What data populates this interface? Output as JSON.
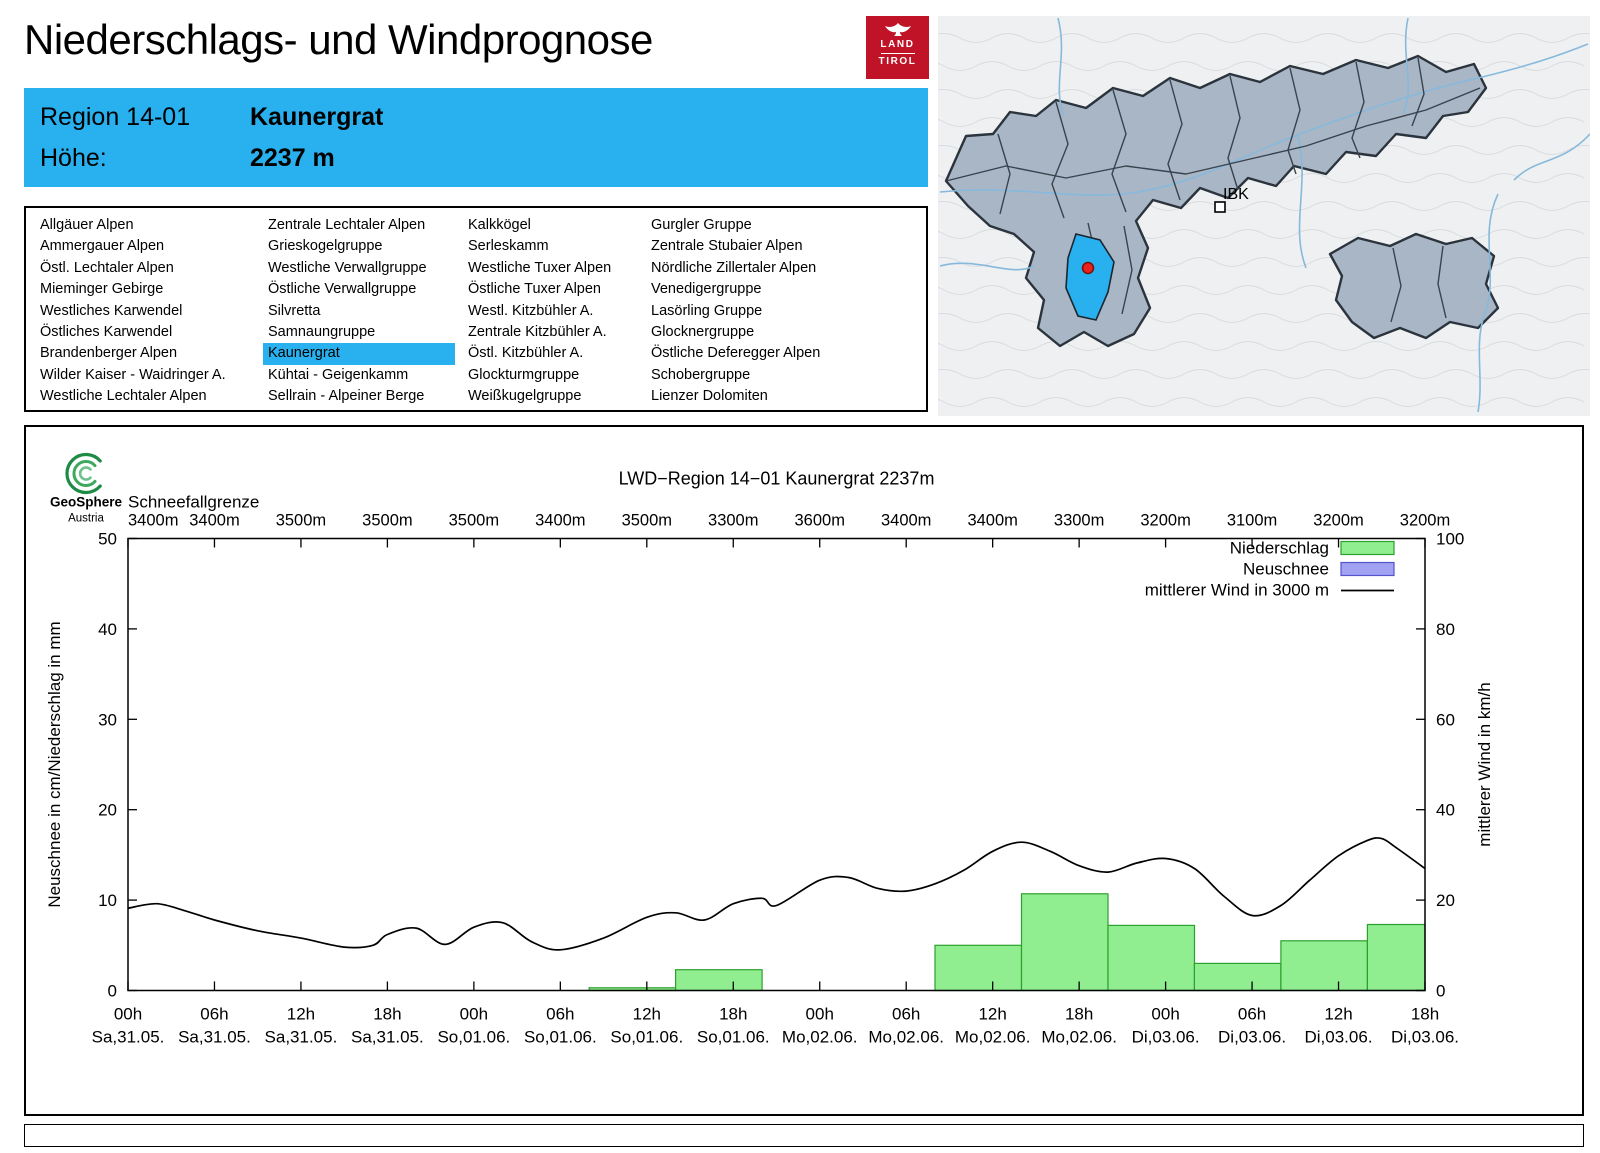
{
  "colors": {
    "accent": "#29b0ee",
    "logo_red": "#c01327",
    "precip_fill": "#90ee90",
    "precip_stroke": "#2ca02c",
    "snow_fill": "#a2a2f2",
    "snow_stroke": "#5353cb",
    "map_region_fill": "#a9b6c6",
    "wind_line": "#000000"
  },
  "header": {
    "title": "Niederschlags- und Windprognose",
    "logo": {
      "line1": "LAND",
      "line2": "TIROL"
    }
  },
  "region_box": {
    "region_label": "Region 14-01",
    "region_name": "Kaunergrat",
    "altitude_label": "Höhe:",
    "altitude_value": "2237 m"
  },
  "map": {
    "city_label": "IBK"
  },
  "geosphere_logo": {
    "name": "GeoSphere",
    "sub": "Austria"
  },
  "region_list": {
    "selected": "Kaunergrat",
    "columns": [
      [
        "Allgäuer Alpen",
        "Ammergauer Alpen",
        "Östl. Lechtaler Alpen",
        "Mieminger Gebirge",
        "Westliches Karwendel",
        "Östliches Karwendel",
        "Brandenberger Alpen",
        "Wilder Kaiser - Waidringer A.",
        "Westliche Lechtaler Alpen"
      ],
      [
        "Zentrale Lechtaler Alpen",
        "Grieskogelgruppe",
        "Westliche Verwallgruppe",
        "Östliche Verwallgruppe",
        "Silvretta",
        "Samnaungruppe",
        "Kaunergrat",
        "Kühtai - Geigenkamm",
        "Sellrain - Alpeiner Berge"
      ],
      [
        "Kalkkögel",
        "Serleskamm",
        "Westliche Tuxer Alpen",
        "Östliche Tuxer Alpen",
        "Westl. Kitzbühler A.",
        "Zentrale Kitzbühler A.",
        "Östl. Kitzbühler A.",
        "Glockturmgruppe",
        "Weißkugelgruppe"
      ],
      [
        "Gurgler Gruppe",
        "Zentrale Stubaier Alpen",
        "Nördliche Zillertaler Alpen",
        "Venedigergruppe",
        "Lasörling Gruppe",
        "Glocknergruppe",
        "Östliche Deferegger Alpen",
        "Schobergruppe",
        "Lienzer Dolomiten"
      ]
    ]
  },
  "chart_data": {
    "type": "bar",
    "title": "LWD−Region 14−01 Kaunergrat 2237m",
    "grid": false,
    "legend_position": "top-right",
    "x_axis": {
      "hours_range": [
        0,
        90
      ],
      "tick_interval_hours": 6,
      "ticks": [
        {
          "hour": 0,
          "time": "00h",
          "date": "Sa,31.05."
        },
        {
          "hour": 6,
          "time": "06h",
          "date": "Sa,31.05."
        },
        {
          "hour": 12,
          "time": "12h",
          "date": "Sa,31.05."
        },
        {
          "hour": 18,
          "time": "18h",
          "date": "Sa,31.05."
        },
        {
          "hour": 24,
          "time": "00h",
          "date": "So,01.06."
        },
        {
          "hour": 30,
          "time": "06h",
          "date": "So,01.06."
        },
        {
          "hour": 36,
          "time": "12h",
          "date": "So,01.06."
        },
        {
          "hour": 42,
          "time": "18h",
          "date": "So,01.06."
        },
        {
          "hour": 48,
          "time": "00h",
          "date": "Mo,02.06."
        },
        {
          "hour": 54,
          "time": "06h",
          "date": "Mo,02.06."
        },
        {
          "hour": 60,
          "time": "12h",
          "date": "Mo,02.06."
        },
        {
          "hour": 66,
          "time": "18h",
          "date": "Mo,02.06."
        },
        {
          "hour": 72,
          "time": "00h",
          "date": "Di,03.06."
        },
        {
          "hour": 78,
          "time": "06h",
          "date": "Di,03.06."
        },
        {
          "hour": 84,
          "time": "12h",
          "date": "Di,03.06."
        },
        {
          "hour": 90,
          "time": "18h",
          "date": "Di,03.06."
        }
      ]
    },
    "left_axis": {
      "label": "Neuschnee in cm/Niederschlag in mm",
      "range": [
        0,
        50
      ],
      "ticks": [
        0,
        10,
        20,
        30,
        40,
        50
      ]
    },
    "right_axis": {
      "label": "mittlerer Wind in km/h",
      "range": [
        0,
        100
      ],
      "ticks": [
        0,
        20,
        40,
        60,
        80,
        100
      ]
    },
    "snowline": {
      "label": "Schneefallgrenze",
      "values": [
        "3400m",
        "3400m",
        "3500m",
        "3500m",
        "3500m",
        "3400m",
        "3500m",
        "3300m",
        "3600m",
        "3400m",
        "3400m",
        "3300m",
        "3200m",
        "3100m",
        "3200m",
        "3200m"
      ]
    },
    "series": [
      {
        "name": "Niederschlag",
        "type": "bar",
        "axis": "left",
        "fill": "#90ee90",
        "stroke": "#2ca02c",
        "bins": [
          {
            "start": 32,
            "end": 38,
            "value": 0.3
          },
          {
            "start": 38,
            "end": 44,
            "value": 2.3
          },
          {
            "start": 56,
            "end": 62,
            "value": 5.0
          },
          {
            "start": 62,
            "end": 68,
            "value": 10.7
          },
          {
            "start": 68,
            "end": 74,
            "value": 7.2
          },
          {
            "start": 74,
            "end": 80,
            "value": 3.0
          },
          {
            "start": 80,
            "end": 86,
            "value": 5.5
          },
          {
            "start": 86,
            "end": 90,
            "value": 7.3
          }
        ]
      },
      {
        "name": "Neuschnee",
        "type": "bar",
        "axis": "left",
        "fill": "#a2a2f2",
        "stroke": "#5353cb",
        "bins": []
      },
      {
        "name": "mittlerer Wind in 3000 m",
        "type": "line",
        "axis": "right",
        "color": "#000000",
        "points": [
          [
            0,
            18.2
          ],
          [
            2,
            19.2
          ],
          [
            4,
            17.6
          ],
          [
            6,
            15.6
          ],
          [
            9,
            13.2
          ],
          [
            12,
            11.6
          ],
          [
            15,
            9.6
          ],
          [
            17,
            10.0
          ],
          [
            18,
            12.4
          ],
          [
            20,
            13.8
          ],
          [
            22,
            10.2
          ],
          [
            24,
            14.0
          ],
          [
            26,
            15.0
          ],
          [
            28,
            10.8
          ],
          [
            30,
            9.0
          ],
          [
            33,
            11.6
          ],
          [
            36,
            16.2
          ],
          [
            38,
            17.2
          ],
          [
            40,
            15.6
          ],
          [
            42,
            19.2
          ],
          [
            44,
            20.4
          ],
          [
            45,
            18.8
          ],
          [
            48,
            24.4
          ],
          [
            50,
            25.0
          ],
          [
            52,
            22.6
          ],
          [
            54,
            22.0
          ],
          [
            56,
            23.6
          ],
          [
            58,
            26.6
          ],
          [
            60,
            30.8
          ],
          [
            62,
            32.8
          ],
          [
            64,
            30.8
          ],
          [
            66,
            27.6
          ],
          [
            68,
            26.2
          ],
          [
            70,
            28.2
          ],
          [
            72,
            29.2
          ],
          [
            74,
            27.0
          ],
          [
            76,
            21.0
          ],
          [
            78,
            16.6
          ],
          [
            80,
            18.8
          ],
          [
            82,
            24.4
          ],
          [
            84,
            29.8
          ],
          [
            86,
            33.2
          ],
          [
            87,
            33.6
          ],
          [
            88,
            31.6
          ],
          [
            90,
            27.0
          ]
        ]
      }
    ]
  }
}
